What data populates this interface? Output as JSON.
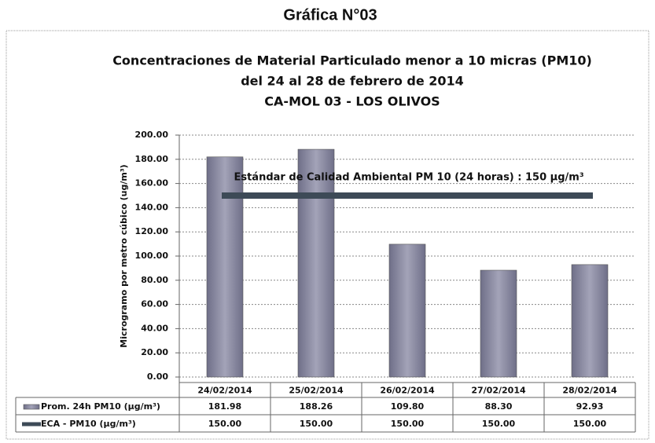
{
  "header": {
    "title": "Gráfica N°03"
  },
  "chart_data": {
    "type": "bar",
    "title": [
      "Concentraciones de Material Particulado menor a 10 micras (PM10)",
      "del 24 al 28 de febrero de 2014",
      "CA-MOL 03 - LOS OLIVOS"
    ],
    "y_label": "Microgramo por metro cúbico (ug/m³)",
    "annotation": "Estándar de Calidad Ambiental PM 10 (24 horas) : 150 μg/m³",
    "categories": [
      "24/02/2014",
      "25/02/2014",
      "26/02/2014",
      "27/02/2014",
      "28/02/2014"
    ],
    "series": [
      {
        "name": "Prom. 24h PM10  (μg/m³)",
        "type": "bar",
        "color": "#8c8ca3",
        "values": [
          181.98,
          188.26,
          109.8,
          88.3,
          92.93
        ],
        "value_labels": [
          "181.98",
          "188.26",
          "109.80",
          "88.30",
          "92.93"
        ]
      },
      {
        "name": "ECA - PM10 (μg/m³)",
        "type": "line",
        "color": "#3d4a57",
        "values": [
          150,
          150,
          150,
          150,
          150
        ],
        "value_labels": [
          "150.00",
          "150.00",
          "150.00",
          "150.00",
          "150.00"
        ]
      }
    ],
    "ylim": [
      0,
      200
    ],
    "yticks": [
      {
        "value": 0,
        "label": "0.00"
      },
      {
        "value": 20,
        "label": "20.00"
      },
      {
        "value": 40,
        "label": "40.00"
      },
      {
        "value": 60,
        "label": "60.00"
      },
      {
        "value": 80,
        "label": "80.00"
      },
      {
        "value": 100,
        "label": "100.00"
      },
      {
        "value": 120,
        "label": "120.00"
      },
      {
        "value": 140,
        "label": "140.00"
      },
      {
        "value": 160,
        "label": "160.00"
      },
      {
        "value": 180,
        "label": "180.00"
      },
      {
        "value": 200,
        "label": "200.00"
      }
    ],
    "grid": true
  }
}
